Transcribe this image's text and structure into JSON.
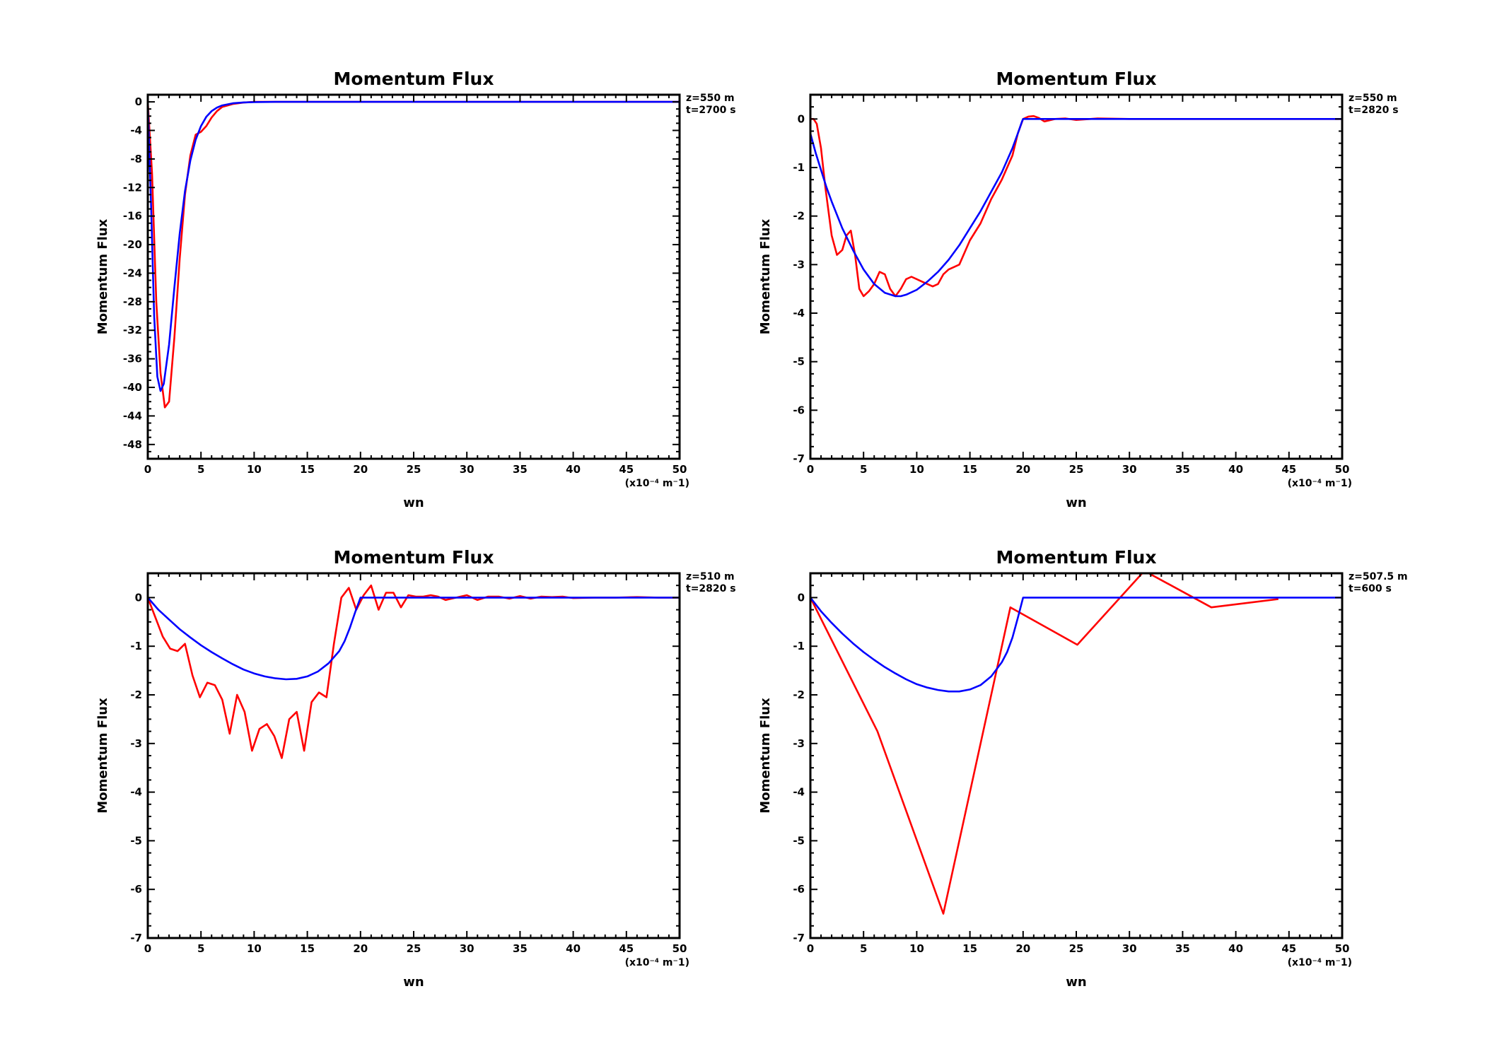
{
  "chart_data": [
    {
      "type": "line",
      "title": "Momentum Flux",
      "xlabel": "wn",
      "ylabel": "Momentum Flux",
      "x_unit_label": "(x10⁻⁴ m⁻1)",
      "annotations": [
        "z=550  m",
        "t=2700  s"
      ],
      "xlim": [
        0,
        50
      ],
      "ylim": [
        -50,
        1
      ],
      "xticks": [
        0,
        5,
        10,
        15,
        20,
        25,
        30,
        35,
        40,
        45,
        50
      ],
      "xtick_labels": [
        "0",
        "5",
        "10",
        "15",
        "20",
        "25",
        "30",
        "35",
        "40",
        "45",
        "50"
      ],
      "yticks": [
        0,
        -4,
        -8,
        -12,
        -16,
        -20,
        -24,
        -28,
        -32,
        -36,
        -40,
        -44,
        -48
      ],
      "ytick_labels": [
        "0",
        "-4",
        "-8",
        "-12",
        "-16",
        "-20",
        "-24",
        "-28",
        "-32",
        "-36",
        "-40",
        "-44",
        "-48"
      ],
      "grid": false,
      "series": [
        {
          "color": "#ff0000",
          "x": [
            0,
            0.4,
            0.8,
            1.2,
            1.6,
            2.0,
            2.5,
            3.0,
            3.5,
            4.0,
            4.5,
            5.0,
            5.5,
            6.0,
            6.5,
            7.0,
            8.0,
            9.0,
            10.0,
            12.0,
            15.0,
            20.0,
            30.0,
            40.0,
            50.0
          ],
          "y": [
            0,
            -10,
            -28,
            -38,
            -42.8,
            -42,
            -33,
            -22,
            -13,
            -7.5,
            -4.6,
            -4.2,
            -3.4,
            -2.2,
            -1.3,
            -0.7,
            -0.3,
            -0.1,
            0,
            0,
            0,
            0,
            0,
            0,
            0
          ]
        },
        {
          "color": "#0000ff",
          "x": [
            0,
            0.3,
            0.6,
            0.9,
            1.2,
            1.5,
            2.0,
            2.5,
            3.0,
            3.5,
            4.0,
            4.5,
            5.0,
            5.5,
            6.0,
            6.5,
            7.0,
            8.0,
            9.0,
            10.0,
            12.0,
            15.0,
            20.0,
            30.0,
            40.0,
            50.0
          ],
          "y": [
            0,
            -14,
            -30,
            -38.5,
            -40.5,
            -39.5,
            -34,
            -26,
            -18.5,
            -12.5,
            -8.2,
            -5.3,
            -3.4,
            -2.1,
            -1.3,
            -0.8,
            -0.5,
            -0.2,
            -0.08,
            -0.03,
            0,
            0,
            0,
            0,
            0,
            0
          ]
        }
      ]
    },
    {
      "type": "line",
      "title": "Momentum Flux",
      "xlabel": "wn",
      "ylabel": "Momentum Flux",
      "x_unit_label": "(x10⁻⁴ m⁻1)",
      "annotations": [
        "z=550  m",
        "t=2820  s"
      ],
      "xlim": [
        0,
        50
      ],
      "ylim": [
        -7,
        0.5
      ],
      "xticks": [
        0,
        5,
        10,
        15,
        20,
        25,
        30,
        35,
        40,
        45,
        50
      ],
      "xtick_labels": [
        "0",
        "5",
        "10",
        "15",
        "20",
        "25",
        "30",
        "35",
        "40",
        "45",
        "50"
      ],
      "yticks": [
        0,
        -1,
        -2,
        -3,
        -4,
        -5,
        -6,
        -7
      ],
      "ytick_labels": [
        "0",
        "-1",
        "-2",
        "-3",
        "-4",
        "-5",
        "-6",
        "-7"
      ],
      "grid": false,
      "series": [
        {
          "color": "#ff0000",
          "x": [
            0,
            0.3,
            0.6,
            1.0,
            1.4,
            2.0,
            2.5,
            3.0,
            3.4,
            3.8,
            4.2,
            4.6,
            5.0,
            5.5,
            6.0,
            6.5,
            7.0,
            7.5,
            8.0,
            8.5,
            9.0,
            9.5,
            10.0,
            10.5,
            11.0,
            11.5,
            12.0,
            12.5,
            13.0,
            13.5,
            14.0,
            15.0,
            16.0,
            17.0,
            18.0,
            19.0,
            19.5,
            20.0,
            20.5,
            21.0,
            21.5,
            22.0,
            23.0,
            24.0,
            25.0,
            27.0,
            30.0,
            35.0,
            40.0,
            45.0,
            50.0
          ],
          "y": [
            0,
            0,
            -0.1,
            -0.6,
            -1.4,
            -2.4,
            -2.8,
            -2.7,
            -2.4,
            -2.3,
            -2.8,
            -3.5,
            -3.65,
            -3.55,
            -3.4,
            -3.15,
            -3.2,
            -3.5,
            -3.65,
            -3.5,
            -3.3,
            -3.25,
            -3.3,
            -3.35,
            -3.4,
            -3.45,
            -3.4,
            -3.2,
            -3.1,
            -3.05,
            -3.0,
            -2.5,
            -2.15,
            -1.65,
            -1.25,
            -0.75,
            -0.3,
            0,
            0.05,
            0.06,
            0.02,
            -0.05,
            0,
            0.01,
            -0.02,
            0.01,
            0,
            0,
            0,
            0,
            0
          ]
        },
        {
          "color": "#0000ff",
          "x": [
            0,
            0.5,
            1.0,
            1.5,
            2.0,
            3.0,
            4.0,
            5.0,
            6.0,
            7.0,
            8.0,
            8.5,
            9.0,
            10.0,
            11.0,
            12.0,
            13.0,
            14.0,
            15.0,
            16.0,
            17.0,
            18.0,
            19.0,
            19.5,
            19.9,
            20.0,
            25.0,
            30.0,
            35.0,
            40.0,
            45.0,
            50.0
          ],
          "y": [
            -0.3,
            -0.7,
            -1.05,
            -1.4,
            -1.7,
            -2.25,
            -2.7,
            -3.1,
            -3.4,
            -3.58,
            -3.65,
            -3.65,
            -3.62,
            -3.52,
            -3.35,
            -3.15,
            -2.9,
            -2.6,
            -2.25,
            -1.9,
            -1.5,
            -1.1,
            -0.6,
            -0.3,
            -0.05,
            0,
            0,
            0,
            0,
            0,
            0,
            0
          ]
        }
      ]
    },
    {
      "type": "line",
      "title": "Momentum Flux",
      "xlabel": "wn",
      "ylabel": "Momentum Flux",
      "x_unit_label": "(x10⁻⁴ m⁻1)",
      "annotations": [
        "z=510  m",
        "t=2820  s"
      ],
      "xlim": [
        0,
        50
      ],
      "ylim": [
        -7,
        0.5
      ],
      "xticks": [
        0,
        5,
        10,
        15,
        20,
        25,
        30,
        35,
        40,
        45,
        50
      ],
      "xtick_labels": [
        "0",
        "5",
        "10",
        "15",
        "20",
        "25",
        "30",
        "35",
        "40",
        "45",
        "50"
      ],
      "yticks": [
        0,
        -1,
        -2,
        -3,
        -4,
        -5,
        -6,
        -7
      ],
      "ytick_labels": [
        "0",
        "-1",
        "-2",
        "-3",
        "-4",
        "-5",
        "-6",
        "-7"
      ],
      "grid": false,
      "series": [
        {
          "color": "#ff0000",
          "x": [
            0,
            0.7,
            1.4,
            2.1,
            2.8,
            3.5,
            4.2,
            4.9,
            5.6,
            6.3,
            7.0,
            7.7,
            8.4,
            9.1,
            9.8,
            10.5,
            11.2,
            11.9,
            12.6,
            13.3,
            14.0,
            14.7,
            15.4,
            16.1,
            16.8,
            17.5,
            18.2,
            18.9,
            19.6,
            20.3,
            21.0,
            21.7,
            22.4,
            23.1,
            23.8,
            24.5,
            25.2,
            25.9,
            26.6,
            27.3,
            28.0,
            29.0,
            30.0,
            31.0,
            32.0,
            33.0,
            34.0,
            35.0,
            36.0,
            37.0,
            38.0,
            39.0,
            40.0,
            42.0,
            44.0,
            46.0,
            48.0,
            50.0
          ],
          "y": [
            0,
            -0.4,
            -0.8,
            -1.05,
            -1.1,
            -0.95,
            -1.6,
            -2.05,
            -1.75,
            -1.8,
            -2.1,
            -2.8,
            -2.0,
            -2.35,
            -3.15,
            -2.7,
            -2.6,
            -2.85,
            -3.3,
            -2.5,
            -2.35,
            -3.15,
            -2.15,
            -1.95,
            -2.05,
            -0.95,
            0,
            0.2,
            -0.25,
            0.05,
            0.25,
            -0.25,
            0.1,
            0.1,
            -0.2,
            0.05,
            0.02,
            0.02,
            0.05,
            0.02,
            -0.05,
            0,
            0.05,
            -0.05,
            0.02,
            0.02,
            -0.02,
            0.03,
            -0.02,
            0.02,
            0.01,
            0.02,
            -0.01,
            0,
            0,
            0.01,
            0,
            0
          ]
        },
        {
          "color": "#0000ff",
          "x": [
            0,
            1.0,
            2.0,
            3.0,
            4.0,
            5.0,
            6.0,
            7.0,
            8.0,
            9.0,
            10.0,
            11.0,
            12.0,
            13.0,
            14.0,
            15.0,
            16.0,
            17.0,
            18.0,
            18.5,
            19.0,
            19.5,
            20.0,
            25.0,
            30.0,
            35.0,
            40.0,
            45.0,
            50.0
          ],
          "y": [
            0,
            -0.25,
            -0.45,
            -0.65,
            -0.82,
            -0.98,
            -1.12,
            -1.25,
            -1.37,
            -1.48,
            -1.56,
            -1.62,
            -1.66,
            -1.68,
            -1.67,
            -1.62,
            -1.52,
            -1.35,
            -1.1,
            -0.9,
            -0.62,
            -0.3,
            0,
            0,
            0,
            0,
            0,
            0,
            0
          ]
        }
      ]
    },
    {
      "type": "line",
      "title": "Momentum Flux",
      "xlabel": "wn",
      "ylabel": "Momentum Flux",
      "x_unit_label": "(x10⁻⁴ m⁻1)",
      "annotations": [
        "z=507.5  m",
        "t=600  s"
      ],
      "xlim": [
        0,
        50
      ],
      "ylim": [
        -7,
        0.5
      ],
      "xticks": [
        0,
        5,
        10,
        15,
        20,
        25,
        30,
        35,
        40,
        45,
        50
      ],
      "xtick_labels": [
        "0",
        "5",
        "10",
        "15",
        "20",
        "25",
        "30",
        "35",
        "40",
        "45",
        "50"
      ],
      "yticks": [
        0,
        -1,
        -2,
        -3,
        -4,
        -5,
        -6,
        -7
      ],
      "ytick_labels": [
        "0",
        "-1",
        "-2",
        "-3",
        "-4",
        "-5",
        "-6",
        "-7"
      ],
      "grid": false,
      "series": [
        {
          "color": "#ff0000",
          "x": [
            0,
            6.3,
            12.5,
            18.8,
            25.1,
            31.4,
            37.7,
            44.0
          ],
          "y": [
            0,
            -2.75,
            -6.5,
            -0.2,
            -0.97,
            0.55,
            -0.2,
            -0.03
          ]
        },
        {
          "color": "#0000ff",
          "x": [
            0,
            1.0,
            2.0,
            3.0,
            4.0,
            5.0,
            6.0,
            7.0,
            8.0,
            9.0,
            10.0,
            11.0,
            12.0,
            13.0,
            14.0,
            15.0,
            16.0,
            17.0,
            18.0,
            18.5,
            19.0,
            19.5,
            20.0,
            25.0,
            30.0,
            35.0,
            40.0,
            45.0,
            50.0
          ],
          "y": [
            0,
            -0.28,
            -0.52,
            -0.74,
            -0.94,
            -1.12,
            -1.28,
            -1.43,
            -1.56,
            -1.68,
            -1.78,
            -1.85,
            -1.9,
            -1.93,
            -1.93,
            -1.89,
            -1.8,
            -1.62,
            -1.33,
            -1.12,
            -0.82,
            -0.42,
            0,
            0,
            0,
            0,
            0,
            0,
            0
          ]
        }
      ]
    }
  ]
}
